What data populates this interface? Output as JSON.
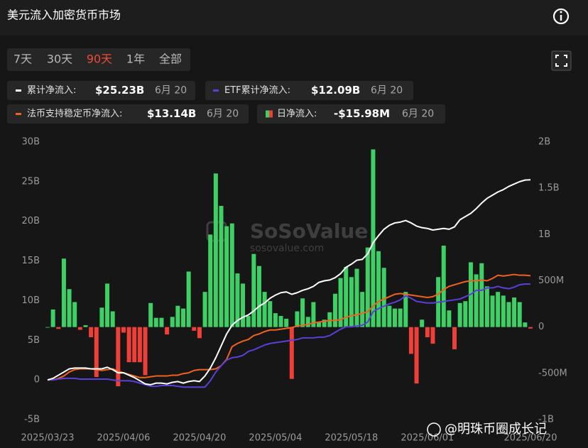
{
  "chart_data": {
    "type": "combo",
    "title": "美元流入加密货币市场",
    "range_tabs": [
      "7天",
      "30天",
      "90天",
      "1年",
      "全部"
    ],
    "active_tab": 2,
    "watermark": {
      "brand": "SoSoValue",
      "site": "sosovalue.com",
      "credit": "@明珠币圈成长记"
    },
    "grid": false,
    "x": [
      "2025/03/23",
      "2025/03/24",
      "2025/03/25",
      "2025/03/26",
      "2025/03/27",
      "2025/03/28",
      "2025/03/29",
      "2025/03/30",
      "2025/03/31",
      "2025/04/01",
      "2025/04/02",
      "2025/04/03",
      "2025/04/04",
      "2025/04/05",
      "2025/04/06",
      "2025/04/07",
      "2025/04/08",
      "2025/04/09",
      "2025/04/10",
      "2025/04/11",
      "2025/04/12",
      "2025/04/13",
      "2025/04/14",
      "2025/04/15",
      "2025/04/16",
      "2025/04/17",
      "2025/04/18",
      "2025/04/19",
      "2025/04/20",
      "2025/04/21",
      "2025/04/22",
      "2025/04/23",
      "2025/04/24",
      "2025/04/25",
      "2025/04/26",
      "2025/04/27",
      "2025/04/28",
      "2025/04/29",
      "2025/04/30",
      "2025/05/01",
      "2025/05/02",
      "2025/05/03",
      "2025/05/04",
      "2025/05/05",
      "2025/05/06",
      "2025/05/07",
      "2025/05/08",
      "2025/05/09",
      "2025/05/10",
      "2025/05/11",
      "2025/05/12",
      "2025/05/13",
      "2025/05/14",
      "2025/05/15",
      "2025/05/16",
      "2025/05/17",
      "2025/05/18",
      "2025/05/19",
      "2025/05/20",
      "2025/05/21",
      "2025/05/22",
      "2025/05/23",
      "2025/05/24",
      "2025/05/25",
      "2025/05/26",
      "2025/05/27",
      "2025/05/28",
      "2025/05/29",
      "2025/05/30",
      "2025/05/31",
      "2025/06/01",
      "2025/06/02",
      "2025/06/03",
      "2025/06/04",
      "2025/06/05",
      "2025/06/06",
      "2025/06/07",
      "2025/06/08",
      "2025/06/09",
      "2025/06/10",
      "2025/06/11",
      "2025/06/12",
      "2025/06/13",
      "2025/06/14",
      "2025/06/15",
      "2025/06/16",
      "2025/06/17",
      "2025/06/18",
      "2025/06/19",
      "2025/06/20"
    ],
    "xticks": [
      "2025/03/23",
      "2025/04/06",
      "2025/04/20",
      "2025/05/04",
      "2025/05/18",
      "2025/06/01",
      "2025/06/20"
    ],
    "ylim": [
      -5,
      30
    ],
    "yticks": [
      {
        "value": -5,
        "label": "-5B"
      },
      0,
      {
        "value": 5,
        "label": "5B"
      },
      {
        "value": 10,
        "label": "10B"
      },
      {
        "value": 15,
        "label": "15B"
      },
      {
        "value": 20,
        "label": "20B"
      },
      {
        "value": 25,
        "label": "25B"
      },
      {
        "value": 30,
        "label": "30B"
      }
    ],
    "y2lim": [
      -1,
      2
    ],
    "y2ticks": [
      {
        "value": -1,
        "label": "-1B"
      },
      {
        "value": -0.5,
        "label": "-500M"
      },
      0,
      {
        "value": 0.5,
        "label": "500M"
      },
      {
        "value": 1,
        "label": "1B"
      },
      {
        "value": 1.5,
        "label": "1.5B"
      },
      {
        "value": 2,
        "label": "2B"
      }
    ],
    "series": [
      {
        "name": "累计净流入:",
        "type": "line",
        "color": "#ffffff",
        "summary": "$25.23B",
        "summary_date": "6月 20",
        "values": [
          0,
          0.2,
          0.6,
          1.0,
          1.4,
          1.5,
          1.5,
          1.5,
          1.4,
          1.4,
          1.4,
          1.6,
          1.3,
          0.9,
          0.9,
          0.6,
          0.3,
          -0.1,
          -0.5,
          -0.6,
          -0.4,
          -0.4,
          -0.5,
          -0.3,
          -0.2,
          -0.4,
          -0.2,
          -0.1,
          -0.2,
          0.5,
          1.5,
          2.8,
          4.3,
          5.8,
          6.9,
          7.5,
          7.9,
          8.2,
          8.7,
          9.3,
          9.7,
          10.3,
          10.7,
          11.0,
          11.1,
          10.8,
          11.0,
          11.3,
          11.5,
          11.8,
          12.3,
          12.5,
          12.6,
          12.9,
          13.4,
          14.2,
          14.6,
          15.1,
          15.2,
          15.9,
          17.3,
          18.2,
          19.0,
          19.5,
          19.8,
          19.9,
          20.1,
          19.8,
          19.4,
          19.2,
          19.1,
          18.9,
          19.0,
          19.1,
          19.0,
          19.3,
          20.2,
          20.6,
          21.0,
          21.6,
          22.3,
          22.9,
          23.3,
          23.7,
          24.0,
          24.4,
          24.7,
          25.0,
          25.2,
          25.23
        ]
      },
      {
        "name": "ETF累计净流入:",
        "type": "line",
        "color": "#5b3fd9",
        "summary": "$12.09B",
        "summary_date": "6月 20",
        "values": [
          0,
          0,
          0.1,
          0.2,
          0.2,
          0.2,
          0.1,
          0.1,
          0.1,
          0.1,
          0.1,
          0.1,
          0.0,
          -0.1,
          -0.1,
          -0.1,
          -0.2,
          -0.4,
          -0.6,
          -0.8,
          -0.8,
          -0.7,
          -0.7,
          -0.7,
          -0.8,
          -0.9,
          -0.9,
          -0.9,
          -0.9,
          -0.9,
          -0.1,
          1.0,
          1.8,
          2.5,
          2.8,
          2.9,
          3.1,
          3.6,
          3.8,
          4.1,
          4.4,
          4.6,
          4.7,
          4.8,
          4.9,
          5.0,
          5.1,
          5.3,
          5.3,
          5.3,
          5.4,
          5.4,
          5.6,
          6.0,
          6.4,
          6.7,
          6.7,
          6.8,
          6.9,
          7.3,
          8.6,
          9.0,
          9.3,
          9.6,
          9.8,
          10.1,
          10.6,
          10.3,
          9.9,
          9.8,
          9.7,
          9.7,
          9.8,
          9.9,
          10.0,
          10.1,
          10.2,
          10.5,
          10.8,
          11.3,
          11.3,
          11.6,
          11.6,
          11.8,
          11.6,
          11.5,
          11.7,
          12.0,
          12.1,
          12.09
        ]
      },
      {
        "name": "法币支持稳定币净流入:",
        "type": "line",
        "color": "#f0621e",
        "summary": "$13.14B",
        "summary_date": "6月 20",
        "values": [
          0,
          0,
          0.2,
          0.5,
          1.0,
          1.3,
          1.4,
          1.4,
          1.4,
          1.3,
          1.2,
          1.3,
          1.4,
          1.1,
          0.9,
          0.7,
          0.5,
          0.3,
          0.3,
          0.4,
          0.5,
          0.5,
          0.5,
          0.6,
          0.6,
          0.8,
          0.9,
          1.2,
          1.3,
          1.3,
          1.3,
          1.4,
          1.8,
          2.6,
          4.2,
          4.6,
          4.9,
          5.1,
          5.6,
          5.8,
          6.1,
          6.3,
          6.3,
          6.4,
          6.5,
          6.6,
          6.8,
          6.9,
          7.0,
          7.2,
          7.3,
          7.4,
          7.5,
          7.5,
          7.6,
          7.9,
          8.1,
          8.2,
          8.4,
          8.6,
          9.3,
          9.9,
          10.2,
          10.5,
          10.8,
          10.9,
          10.8,
          10.7,
          10.6,
          10.5,
          10.4,
          10.5,
          10.8,
          11.4,
          11.8,
          12.0,
          12.2,
          12.4,
          12.5,
          12.5,
          12.6,
          12.5,
          12.8,
          13.2,
          13.1,
          13.2,
          13.3,
          13.2,
          13.2,
          13.14
        ]
      },
      {
        "name": "日净流入:",
        "type": "bar",
        "axis": "y2",
        "color": "#3ecf65",
        "negative_color": "#ee3f38",
        "summary": "-$15.98M",
        "summary_date": "6月 20",
        "values": [
          0,
          0.19,
          -0.02,
          0.74,
          0.41,
          0.27,
          -0.03,
          0.02,
          -0.11,
          -0.54,
          0.21,
          0.47,
          0.17,
          -0.64,
          -0.06,
          -0.38,
          -0.38,
          -0.38,
          -0.52,
          0.26,
          0.1,
          0.1,
          -0.08,
          0.11,
          0.23,
          0.2,
          0.6,
          -0.04,
          -0.12,
          0.38,
          1.0,
          1.66,
          1.31,
          1.09,
          1.12,
          0.58,
          0.47,
          0.12,
          0.79,
          0.66,
          0.38,
          0.28,
          0.15,
          0.12,
          0.09,
          -0.56,
          0.17,
          0.31,
          0.11,
          0.27,
          0.05,
          0.08,
          0.16,
          0.36,
          0.53,
          0.65,
          0.54,
          0.63,
          0.38,
          0.86,
          1.92,
          0.82,
          0.64,
          0.23,
          0.2,
          0.2,
          0.38,
          -0.29,
          -0.61,
          0.08,
          -0.11,
          -0.18,
          0.54,
          0.88,
          0.18,
          -0.24,
          0.26,
          0.28,
          0.7,
          0.57,
          0.69,
          0.44,
          0.34,
          0.38,
          0.34,
          0.27,
          0.32,
          0.27,
          0.05,
          -0.01598
        ]
      }
    ]
  }
}
